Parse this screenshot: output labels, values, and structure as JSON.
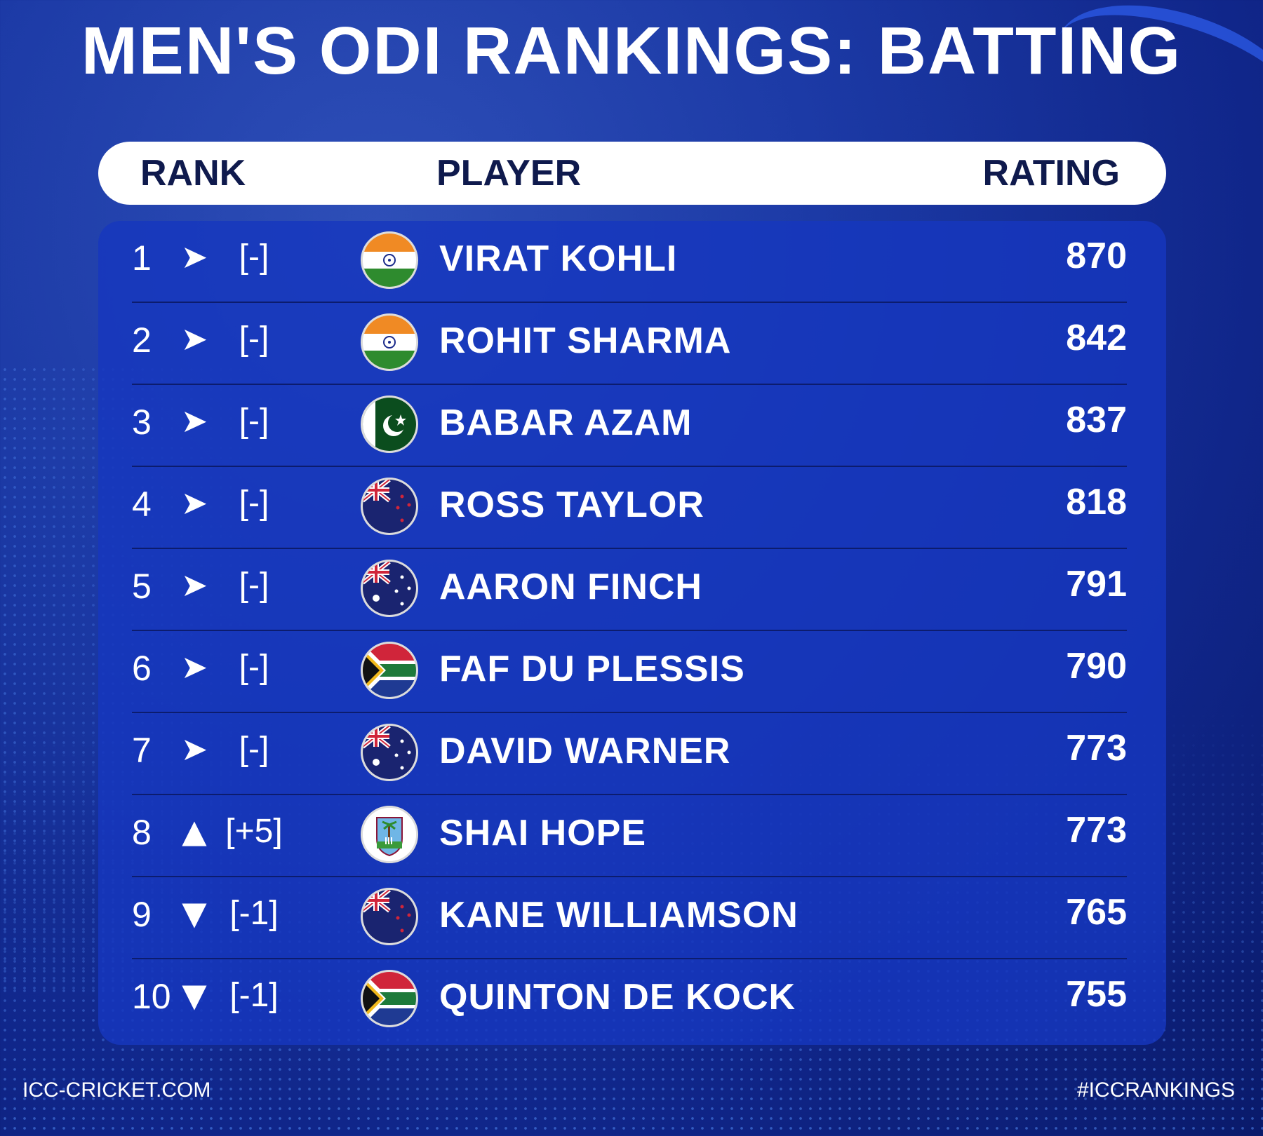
{
  "title": "MEN'S ODI RANKINGS: BATTING",
  "headers": {
    "rank": "RANK",
    "player": "PLAYER",
    "rating": "RATING"
  },
  "rows": [
    {
      "rank": "1",
      "arrow": "➤",
      "change": "[-]",
      "flag": "india-flag-icon",
      "player": "VIRAT KOHLI",
      "rating": "870"
    },
    {
      "rank": "2",
      "arrow": "➤",
      "change": "[-]",
      "flag": "india-flag-icon",
      "player": "ROHIT SHARMA",
      "rating": "842"
    },
    {
      "rank": "3",
      "arrow": "➤",
      "change": "[-]",
      "flag": "pakistan-flag-icon",
      "player": "BABAR AZAM",
      "rating": "837"
    },
    {
      "rank": "4",
      "arrow": "➤",
      "change": "[-]",
      "flag": "new-zealand-flag-icon",
      "player": "ROSS TAYLOR",
      "rating": "818"
    },
    {
      "rank": "5",
      "arrow": "➤",
      "change": "[-]",
      "flag": "australia-flag-icon",
      "player": "AARON FINCH",
      "rating": "791"
    },
    {
      "rank": "6",
      "arrow": "➤",
      "change": "[-]",
      "flag": "south-africa-flag-icon",
      "player": "FAF DU PLESSIS",
      "rating": "790"
    },
    {
      "rank": "7",
      "arrow": "➤",
      "change": "[-]",
      "flag": "australia-flag-icon",
      "player": "DAVID WARNER",
      "rating": "773"
    },
    {
      "rank": "8",
      "arrow": "▲",
      "change": "[+5]",
      "flag": "west-indies-flag-icon",
      "player": "SHAI HOPE",
      "rating": "773"
    },
    {
      "rank": "9",
      "arrow": "▼",
      "change": "[-1]",
      "flag": "new-zealand-flag-icon",
      "player": "KANE WILLIAMSON",
      "rating": "765"
    },
    {
      "rank": "10",
      "arrow": "▼",
      "change": "[-1]",
      "flag": "south-africa-flag-icon",
      "player": "QUINTON DE KOCK",
      "rating": "755"
    }
  ],
  "footer": {
    "left": "ICC-CRICKET.COM",
    "right": "#ICCRANKINGS"
  },
  "colors": {
    "header_text": "#0f1a4d",
    "panel": "#1637be",
    "background": "#1c3aa6"
  }
}
